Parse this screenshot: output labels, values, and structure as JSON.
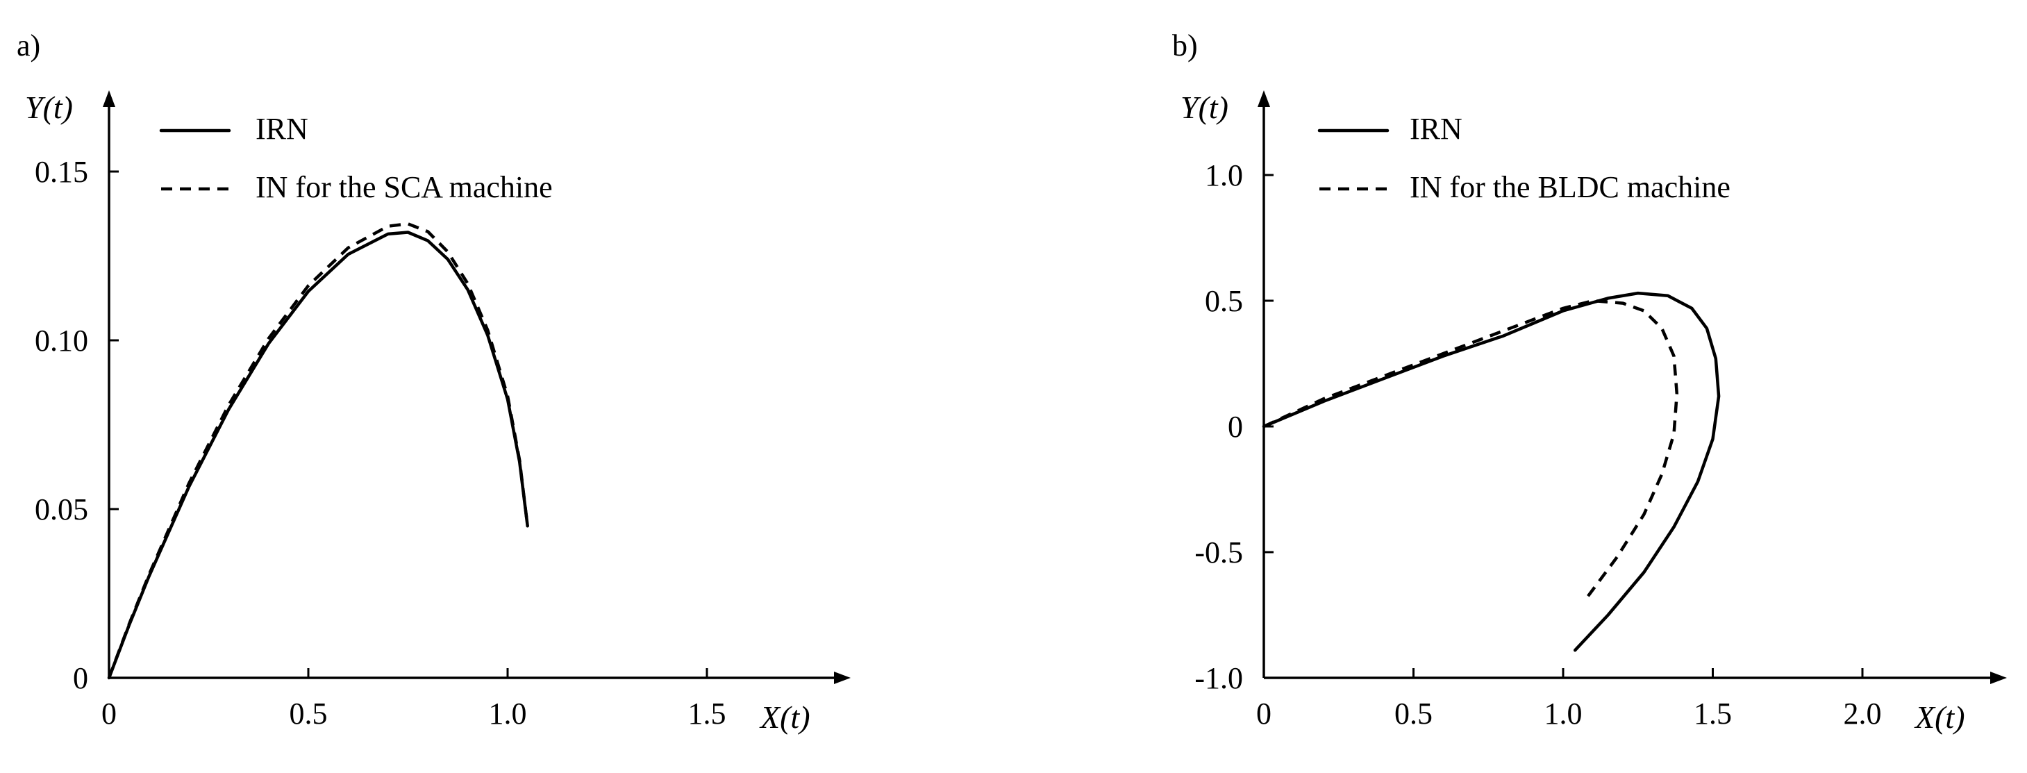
{
  "chart_data": [
    {
      "panel": "a)",
      "type": "line",
      "xlabel": "X(t)",
      "ylabel": "Y(t)",
      "xlim": [
        0,
        1.85
      ],
      "ylim": [
        0,
        0.165
      ],
      "xticks": [
        0,
        0.5,
        1.0,
        1.5
      ],
      "xtick_labels": [
        "0",
        "0.5",
        "1.0",
        "1.5"
      ],
      "yticks": [
        0,
        0.05,
        0.1,
        0.15
      ],
      "ytick_labels": [
        "0",
        "0.05",
        "0.10",
        "0.15"
      ],
      "grid": false,
      "legend_position": "top-left",
      "series": [
        {
          "name": "IRN",
          "style": "solid",
          "x": [
            0,
            0.05,
            0.1,
            0.2,
            0.3,
            0.4,
            0.5,
            0.6,
            0.7,
            0.75,
            0.8,
            0.85,
            0.9,
            0.95,
            1.0,
            1.03,
            1.05
          ],
          "y": [
            0,
            0.0155,
            0.03,
            0.0565,
            0.0795,
            0.099,
            0.1145,
            0.1255,
            0.1315,
            0.132,
            0.1295,
            0.124,
            0.115,
            0.1015,
            0.0825,
            0.064,
            0.045
          ]
        },
        {
          "name": "IN for the SCA machine",
          "style": "dashed",
          "x": [
            0,
            0.05,
            0.1,
            0.2,
            0.3,
            0.4,
            0.5,
            0.6,
            0.7,
            0.75,
            0.8,
            0.85,
            0.9,
            0.95,
            1.0,
            1.03,
            1.05
          ],
          "y": [
            0,
            0.0158,
            0.0305,
            0.0575,
            0.0808,
            0.1005,
            0.1162,
            0.1274,
            0.1338,
            0.1345,
            0.1322,
            0.1262,
            0.1168,
            0.103,
            0.0835,
            0.0645,
            0.045
          ]
        }
      ]
    },
    {
      "panel": "b)",
      "type": "line",
      "xlabel": "X(t)",
      "ylabel": "Y(t)",
      "xlim": [
        0,
        2.45
      ],
      "ylim": [
        -1.0,
        1.25
      ],
      "xticks": [
        0,
        0.5,
        1.0,
        1.5,
        2.0
      ],
      "xtick_labels": [
        "0",
        "0.5",
        "1.0",
        "1.5",
        "2.0"
      ],
      "yticks": [
        -1.0,
        -0.5,
        0,
        0.5,
        1.0
      ],
      "ytick_labels": [
        "-1.0",
        "-0.5",
        "0",
        "0.5",
        "1.0"
      ],
      "grid": false,
      "legend_position": "top-left",
      "series": [
        {
          "name": "IRN",
          "style": "solid",
          "x": [
            0,
            0.2,
            0.4,
            0.6,
            0.8,
            1.0,
            1.15,
            1.25,
            1.35,
            1.43,
            1.48,
            1.51,
            1.52,
            1.5,
            1.45,
            1.37,
            1.27,
            1.15,
            1.04
          ],
          "y": [
            0,
            0.1,
            0.19,
            0.28,
            0.36,
            0.46,
            0.51,
            0.53,
            0.52,
            0.47,
            0.39,
            0.27,
            0.12,
            -0.05,
            -0.22,
            -0.4,
            -0.58,
            -0.75,
            -0.89
          ]
        },
        {
          "name": "IN for the BLDC machine",
          "style": "dashed",
          "x": [
            0,
            0.2,
            0.4,
            0.6,
            0.8,
            1.0,
            1.1,
            1.2,
            1.27,
            1.33,
            1.37,
            1.38,
            1.37,
            1.33,
            1.27,
            1.18,
            1.08
          ],
          "y": [
            0,
            0.11,
            0.2,
            0.29,
            0.38,
            0.47,
            0.5,
            0.49,
            0.46,
            0.39,
            0.28,
            0.13,
            -0.03,
            -0.19,
            -0.35,
            -0.52,
            -0.68
          ]
        }
      ]
    }
  ]
}
